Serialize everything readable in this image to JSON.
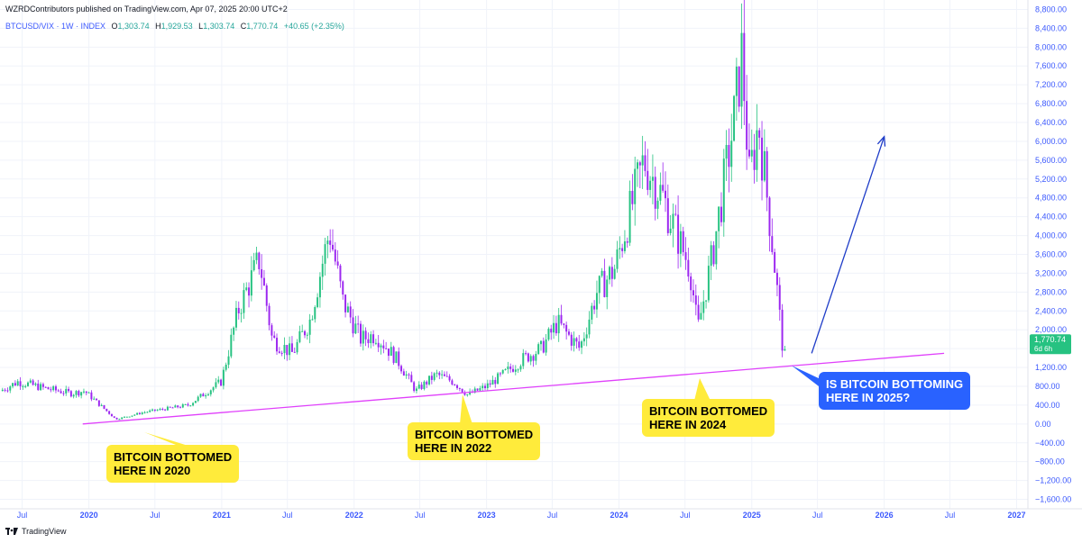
{
  "header": {
    "published": "WZRDContributors published on TradingView.com, Apr 07, 2025 20:00 UTC+2",
    "symbol": "BTCUSD/VIX · 1W · INDEX",
    "open_label": "O",
    "open": "1,303.74",
    "high_label": "H",
    "high": "1,929.53",
    "low_label": "L",
    "low": "1,303.74",
    "close_label": "C",
    "close": "1,770.74",
    "change": "+40.65 (+2.35%)"
  },
  "brand": "TradingView",
  "price_tag": {
    "value": "1,770.74",
    "countdown": "6d 6h"
  },
  "colors": {
    "up": "#26c281",
    "down": "#9c27f0",
    "trendline": "#e040fb",
    "arrow": "#1e3cc8",
    "axis_text": "#3d5afe"
  },
  "callouts": [
    {
      "text": "BITCOIN BOTTOMED\nHERE IN 2020",
      "style": "yellow"
    },
    {
      "text": "BITCOIN BOTTOMED\nHERE IN 2022",
      "style": "yellow"
    },
    {
      "text": "BITCOIN BOTTOMED\nHERE IN 2024",
      "style": "yellow"
    },
    {
      "text": "IS BITCOIN BOTTOMING\nHERE IN 2025?",
      "style": "blue"
    }
  ],
  "chart_data": {
    "type": "candlestick",
    "timeframe": "1W",
    "y_ticks": [
      "8,800.00",
      "8,400.00",
      "8,000.00",
      "7,600.00",
      "7,200.00",
      "6,800.00",
      "6,400.00",
      "6,000.00",
      "5,600.00",
      "5,200.00",
      "4,800.00",
      "4,400.00",
      "4,000.00",
      "3,600.00",
      "3,200.00",
      "2,800.00",
      "2,400.00",
      "2,000.00",
      "1,600.00",
      "1,200.00",
      "800.00",
      "400.00",
      "0.00",
      "−400.00",
      "−800.00",
      "−1,200.00",
      "−1,600.00"
    ],
    "y_tick_values": [
      8800,
      8400,
      8000,
      7600,
      7200,
      6800,
      6400,
      6000,
      5600,
      5200,
      4800,
      4400,
      4000,
      3600,
      3200,
      2800,
      2400,
      2000,
      1600,
      1200,
      800,
      400,
      0,
      -400,
      -800,
      -1200,
      -1600
    ],
    "ylim": [
      -1800,
      9000
    ],
    "x_ticks": [
      "Jul",
      "2020",
      "Jul",
      "2021",
      "Jul",
      "2022",
      "Jul",
      "2023",
      "Jul",
      "2024",
      "Jul",
      "2025",
      "Jul",
      "2026",
      "Jul",
      "2027"
    ],
    "x_tick_dates": [
      "2019-07-01",
      "2020-01-01",
      "2020-07-01",
      "2021-01-01",
      "2021-07-01",
      "2022-01-01",
      "2022-07-01",
      "2023-01-01",
      "2023-07-01",
      "2024-01-01",
      "2024-07-01",
      "2025-01-01",
      "2025-07-01",
      "2026-01-01",
      "2026-07-01",
      "2027-01-01"
    ],
    "xlim": [
      "2019-05-01",
      "2027-02-01"
    ],
    "close_path": [
      [
        "2019-05-01",
        700
      ],
      [
        "2019-06-20",
        900
      ],
      [
        "2019-09-01",
        760
      ],
      [
        "2019-11-15",
        650
      ],
      [
        "2019-12-20",
        700
      ],
      [
        "2020-03-15",
        100
      ],
      [
        "2020-06-01",
        250
      ],
      [
        "2020-10-01",
        400
      ],
      [
        "2020-12-31",
        900
      ],
      [
        "2021-02-15",
        2400
      ],
      [
        "2021-04-15",
        3500
      ],
      [
        "2021-05-20",
        1800
      ],
      [
        "2021-07-15",
        1500
      ],
      [
        "2021-09-01",
        2200
      ],
      [
        "2021-10-25",
        4100
      ],
      [
        "2021-12-01",
        2600
      ],
      [
        "2022-01-20",
        1800
      ],
      [
        "2022-03-01",
        1900
      ],
      [
        "2022-05-01",
        1350
      ],
      [
        "2022-06-20",
        700
      ],
      [
        "2022-08-15",
        1050
      ],
      [
        "2022-10-01",
        900
      ],
      [
        "2022-11-10",
        620
      ],
      [
        "2023-01-01",
        800
      ],
      [
        "2023-02-15",
        1050
      ],
      [
        "2023-04-15",
        1400
      ],
      [
        "2023-06-01",
        1600
      ],
      [
        "2023-07-15",
        2150
      ],
      [
        "2023-09-15",
        1600
      ],
      [
        "2023-11-01",
        2800
      ],
      [
        "2023-12-20",
        3300
      ],
      [
        "2024-03-10",
        5600
      ],
      [
        "2024-05-01",
        4800
      ],
      [
        "2024-07-15",
        3300
      ],
      [
        "2024-08-05",
        2000
      ],
      [
        "2024-09-15",
        3600
      ],
      [
        "2024-11-12",
        6400
      ],
      [
        "2024-12-05",
        7900
      ],
      [
        "2024-12-25",
        5200
      ],
      [
        "2025-01-20",
        6400
      ],
      [
        "2025-02-20",
        4300
      ],
      [
        "2025-03-10",
        3000
      ],
      [
        "2025-03-31",
        1300
      ],
      [
        "2025-04-07",
        1770.74
      ]
    ],
    "trendline": {
      "start": [
        "2019-12-15",
        0
      ],
      "end": [
        "2026-06-15",
        1500
      ]
    },
    "projection_arrow": {
      "start": [
        "2025-06-15",
        1500
      ],
      "end": [
        "2026-01-01",
        6100
      ]
    },
    "grid": true
  }
}
